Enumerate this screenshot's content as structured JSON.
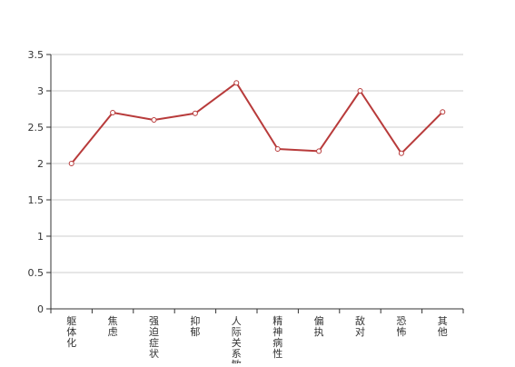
{
  "chart_data": {
    "type": "line",
    "title": "",
    "xlabel": "",
    "ylabel": "",
    "categories": [
      "躯体化",
      "焦虑",
      "强迫症状",
      "抑郁",
      "人际关系敏感",
      "精神病性",
      "偏执",
      "敌对",
      "恐怖",
      "其他"
    ],
    "series": [
      {
        "values": [
          2.0,
          2.7,
          2.6,
          2.69,
          3.11,
          2.2,
          2.17,
          3.0,
          2.14,
          2.71
        ]
      }
    ],
    "ylim": [
      0,
      3.5
    ],
    "yticks": [
      0,
      0.5,
      1,
      1.5,
      2,
      2.5,
      3,
      3.5
    ],
    "ytick_labels": [
      "0",
      "0.5",
      "1",
      "1.5",
      "2",
      "2.5",
      "3",
      "3.5"
    ],
    "grid": true,
    "legend": "none",
    "colors": {
      "line": "#b83b3b",
      "marker_fill": "#ffffff",
      "grid": "#cccccc",
      "axis": "#333333",
      "text": "#333333"
    }
  }
}
